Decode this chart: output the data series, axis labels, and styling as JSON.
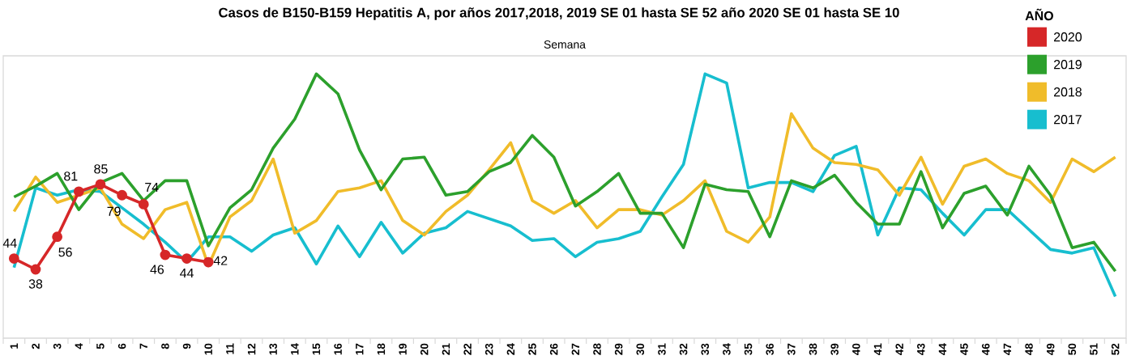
{
  "chart_data": {
    "type": "line",
    "title": "Casos de B150-B159 Hepatitis A, por años 2017,2018, 2019 SE 01 hasta SE 52 año 2020 SE 01 hasta SE 10",
    "xlabel": "Semana",
    "legend_title": "AÑO",
    "legend": "top right",
    "tick_labels": "x",
    "categories": [
      "1",
      "2",
      "3",
      "4",
      "5",
      "6",
      "7",
      "8",
      "9",
      "10",
      "11",
      "12",
      "13",
      "14",
      "15",
      "16",
      "17",
      "18",
      "19",
      "20",
      "21",
      "22",
      "23",
      "24",
      "25",
      "26",
      "27",
      "28",
      "29",
      "30",
      "31",
      "32",
      "33",
      "34",
      "35",
      "36",
      "37",
      "38",
      "39",
      "40",
      "41",
      "42",
      "43",
      "44",
      "45",
      "46",
      "47",
      "48",
      "49",
      "50",
      "51",
      "52"
    ],
    "ylim": [
      0,
      156
    ],
    "series": [
      {
        "name": "2020",
        "color": "#d62728",
        "marker": "circle",
        "values": [
          44,
          38,
          56,
          81,
          85,
          79,
          74,
          46,
          44,
          42,
          null,
          null,
          null,
          null,
          null,
          null,
          null,
          null,
          null,
          null,
          null,
          null,
          null,
          null,
          null,
          null,
          null,
          null,
          null,
          null,
          null,
          null,
          null,
          null,
          null,
          null,
          null,
          null,
          null,
          null,
          null,
          null,
          null,
          null,
          null,
          null,
          null,
          null,
          null,
          null,
          null,
          null
        ],
        "value_labels": [
          "44",
          "38",
          "56",
          "81",
          "85",
          "79",
          "74",
          "46",
          "44",
          "42",
          null,
          null,
          null,
          null,
          null,
          null,
          null,
          null,
          null,
          null,
          null,
          null,
          null,
          null,
          null,
          null,
          null,
          null,
          null,
          null,
          null,
          null,
          null,
          null,
          null,
          null,
          null,
          null,
          null,
          null,
          null,
          null,
          null,
          null,
          null,
          null,
          null,
          null,
          null,
          null,
          null,
          null
        ]
      },
      {
        "name": "2019",
        "color": "#2ca02c",
        "values": [
          78,
          84,
          91,
          71,
          86,
          91,
          76,
          87,
          87,
          51,
          72,
          82,
          105,
          121,
          146,
          135,
          104,
          82,
          99,
          100,
          79,
          81,
          92,
          97,
          112,
          100,
          73,
          81,
          91,
          69,
          69,
          50,
          85,
          82,
          81,
          56,
          87,
          83,
          90,
          75,
          63,
          63,
          92,
          61,
          80,
          84,
          68,
          95,
          79,
          50,
          53,
          37
        ]
      },
      {
        "name": "2018",
        "color": "#f0bc2a",
        "values": [
          70,
          89,
          75,
          79,
          83,
          63,
          55,
          71,
          75,
          40,
          67,
          76,
          99,
          58,
          65,
          81,
          83,
          87,
          65,
          57,
          70,
          79,
          93,
          108,
          76,
          69,
          76,
          61,
          71,
          71,
          68,
          76,
          87,
          59,
          53,
          67,
          124,
          105,
          97,
          96,
          93,
          79,
          100,
          74,
          95,
          99,
          91,
          87,
          75,
          99,
          92,
          100
        ]
      },
      {
        "name": "2017",
        "color": "#17becf",
        "values": [
          39,
          83,
          79,
          82,
          81,
          72,
          63,
          53,
          42,
          56,
          56,
          48,
          57,
          61,
          41,
          62,
          45,
          64,
          47,
          58,
          61,
          70,
          66,
          62,
          54,
          55,
          45,
          53,
          55,
          59,
          78,
          96,
          146,
          141,
          83,
          86,
          86,
          81,
          101,
          106,
          57,
          83,
          82,
          69,
          57,
          71,
          71,
          60,
          49,
          47,
          50,
          23
        ]
      }
    ]
  }
}
